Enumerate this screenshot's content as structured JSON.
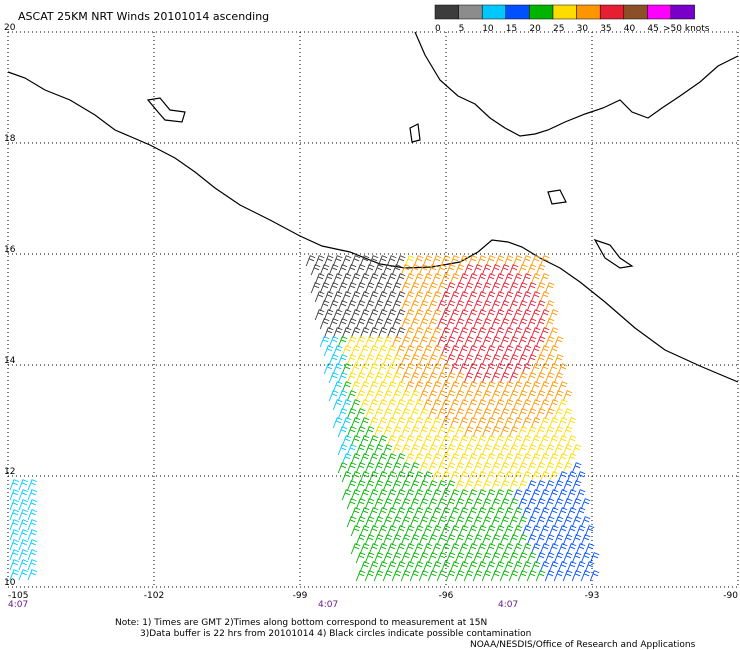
{
  "header": {
    "title": "ASCAT 25KM NRT Winds 20101014 ascending"
  },
  "legend": {
    "labels": [
      "0",
      "5",
      "10",
      "15",
      "20",
      "25",
      "30",
      "35",
      "40",
      "45",
      ">50 knots"
    ],
    "colors": [
      "#3c3c3c",
      "#8c8c8c",
      "#00c8ff",
      "#0050ff",
      "#00b400",
      "#ffdc00",
      "#ff9600",
      "#e61e32",
      "#8c5028",
      "#ff00ff",
      "#7800c8"
    ]
  },
  "map": {
    "lonlim": [
      -105,
      -90
    ],
    "latlim": [
      10,
      20
    ],
    "lon_ticks": [
      -105,
      -102,
      -99,
      -96,
      -93,
      -90
    ],
    "lat_ticks": [
      20,
      18,
      16,
      14,
      12,
      10
    ],
    "times": [
      "4:07",
      "4:07",
      "4:07"
    ]
  },
  "notes": [
    "Note: 1) Times are GMT 2)Times along bottom correspond to measurement at 15N",
    "3)Data buffer is 22 hrs from 20101014 4) Black circles indicate possible contamination",
    "NOAA/NESDIS/Office of Research and Applications"
  ]
}
